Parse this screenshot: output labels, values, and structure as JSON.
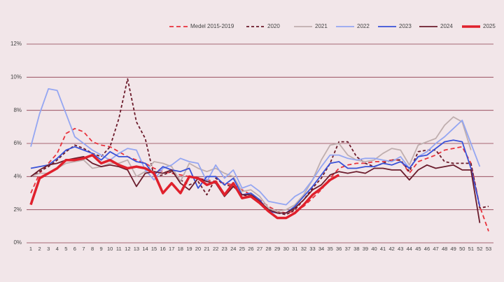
{
  "chart_data": {
    "type": "line",
    "categories": [
      "1",
      "2",
      "3",
      "4",
      "5",
      "6",
      "7",
      "8",
      "9",
      "10",
      "11",
      "12",
      "13",
      "14",
      "15",
      "16",
      "17",
      "18",
      "19",
      "20",
      "21",
      "22",
      "23",
      "24",
      "25",
      "26",
      "27",
      "28",
      "29",
      "30",
      "31",
      "32",
      "33",
      "34",
      "35",
      "36",
      "37",
      "38",
      "39",
      "40",
      "41",
      "42",
      "43",
      "44",
      "45",
      "46",
      "47",
      "48",
      "49",
      "50",
      "51",
      "52",
      "53"
    ],
    "ylim": [
      0,
      12
    ],
    "yticks": [
      {
        "value": 0,
        "label": "0%"
      },
      {
        "value": 2,
        "label": "2%"
      },
      {
        "value": 4,
        "label": "4%"
      },
      {
        "value": 6,
        "label": "6%"
      },
      {
        "value": 8,
        "label": "8%"
      },
      {
        "value": 10,
        "label": "10%"
      },
      {
        "value": 12,
        "label": "12%"
      }
    ],
    "grid": true,
    "legend": "top-right",
    "series": [
      {
        "name": "Medel 2015-2019",
        "color": "#e8323c",
        "dash": "6,4",
        "values": [
          3.0,
          4.2,
          4.8,
          5.4,
          6.6,
          6.9,
          6.7,
          6.1,
          5.9,
          5.8,
          5.5,
          5.2,
          5.0,
          4.8,
          4.5,
          4.3,
          4.2,
          4.1,
          4.0,
          3.9,
          3.8,
          3.7,
          3.6,
          3.5,
          3.2,
          2.9,
          2.6,
          2.2,
          1.9,
          1.8,
          1.9,
          2.2,
          2.7,
          3.2,
          3.9,
          4.5,
          4.7,
          4.8,
          4.8,
          4.9,
          4.9,
          5.0,
          5.0,
          4.2,
          4.9,
          5.1,
          5.3,
          5.6,
          5.7,
          5.8,
          4.8,
          2.2,
          0.7
        ]
      },
      {
        "name": "2020",
        "color": "#6b1a2a",
        "dash": "4,3",
        "values": [
          4.0,
          4.3,
          4.6,
          5.0,
          5.5,
          5.9,
          5.7,
          5.4,
          5.2,
          5.8,
          7.5,
          9.9,
          7.3,
          6.3,
          4.0,
          4.1,
          4.3,
          3.8,
          3.5,
          3.7,
          2.9,
          3.9,
          3.5,
          3.4,
          2.9,
          2.8,
          2.5,
          2.0,
          1.8,
          1.7,
          2.0,
          2.6,
          3.3,
          3.9,
          4.8,
          6.1,
          6.1,
          5.2,
          4.8,
          4.6,
          4.8,
          5.0,
          5.0,
          4.3,
          5.5,
          5.6,
          5.6,
          4.9,
          4.8,
          4.8,
          4.8,
          2.1,
          2.2
        ]
      },
      {
        "name": "2021",
        "color": "#bfaeae",
        "values": [
          4.0,
          4.2,
          4.2,
          4.5,
          4.8,
          4.9,
          5.0,
          4.5,
          4.6,
          4.8,
          4.8,
          5.0,
          4.0,
          4.3,
          4.9,
          4.8,
          4.6,
          3.7,
          4.8,
          4.5,
          4.3,
          4.5,
          4.2,
          4.0,
          3.1,
          3.2,
          2.8,
          2.1,
          1.9,
          2.0,
          2.3,
          2.9,
          3.8,
          5.0,
          5.9,
          6.0,
          5.3,
          5.0,
          4.9,
          5.0,
          5.4,
          5.7,
          5.6,
          4.7,
          5.9,
          6.1,
          6.3,
          7.1,
          7.6,
          7.3,
          5.6,
          null,
          null
        ]
      },
      {
        "name": "2022",
        "color": "#94a6f2",
        "values": [
          5.8,
          7.8,
          9.3,
          9.2,
          7.8,
          6.4,
          6.0,
          5.6,
          5.3,
          5.0,
          5.4,
          5.7,
          5.6,
          4.4,
          3.8,
          4.5,
          4.7,
          5.1,
          4.9,
          4.8,
          3.7,
          4.7,
          3.9,
          4.4,
          3.3,
          3.5,
          3.1,
          2.5,
          2.4,
          2.3,
          2.8,
          3.1,
          3.8,
          4.6,
          5.3,
          5.3,
          5.1,
          5.0,
          5.1,
          5.1,
          5.0,
          4.9,
          5.2,
          4.5,
          5.2,
          5.5,
          6.0,
          6.4,
          6.9,
          7.4,
          6.0,
          4.6,
          null
        ]
      },
      {
        "name": "2023",
        "color": "#3a52d8",
        "values": [
          4.5,
          4.6,
          4.7,
          5.1,
          5.6,
          5.8,
          5.6,
          5.4,
          5.0,
          5.5,
          5.2,
          5.2,
          4.9,
          4.8,
          4.1,
          4.6,
          4.4,
          4.3,
          4.5,
          3.3,
          4.0,
          4.0,
          3.5,
          3.9,
          2.9,
          3.0,
          2.6,
          1.9,
          1.8,
          1.8,
          2.2,
          2.8,
          3.4,
          4.1,
          4.8,
          4.9,
          4.5,
          4.5,
          4.6,
          4.6,
          4.8,
          4.7,
          4.9,
          4.5,
          5.2,
          5.3,
          5.7,
          6.1,
          6.2,
          6.1,
          4.5,
          2.2,
          null
        ]
      },
      {
        "name": "2024",
        "color": "#6b1c2c",
        "values": [
          4.0,
          4.4,
          4.7,
          4.8,
          5.0,
          5.1,
          5.2,
          4.8,
          4.6,
          4.7,
          4.6,
          4.4,
          3.4,
          4.2,
          4.3,
          4.2,
          4.4,
          3.6,
          3.2,
          3.9,
          3.7,
          3.6,
          2.8,
          3.4,
          2.9,
          2.9,
          2.5,
          2.0,
          1.8,
          1.8,
          2.1,
          2.6,
          3.2,
          3.5,
          4.1,
          4.3,
          4.2,
          4.3,
          4.2,
          4.5,
          4.5,
          4.4,
          4.4,
          3.8,
          4.4,
          4.7,
          4.5,
          4.6,
          4.7,
          4.4,
          4.4,
          1.2,
          null
        ]
      },
      {
        "name": "2025",
        "color": "#e0202c",
        "width": 3.5,
        "values": [
          2.3,
          3.9,
          4.2,
          4.5,
          5.0,
          5.0,
          5.1,
          5.3,
          4.8,
          5.0,
          4.7,
          4.5,
          4.6,
          4.5,
          4.2,
          3.0,
          3.6,
          3.0,
          4.0,
          3.9,
          3.5,
          3.7,
          2.9,
          3.6,
          2.7,
          2.8,
          2.4,
          1.9,
          1.5,
          1.5,
          1.8,
          2.3,
          2.9,
          3.3,
          3.8,
          4.1,
          null,
          null,
          null,
          null,
          null,
          null,
          null,
          null,
          null,
          null,
          null,
          null,
          null,
          null,
          null,
          null,
          null
        ]
      }
    ]
  }
}
